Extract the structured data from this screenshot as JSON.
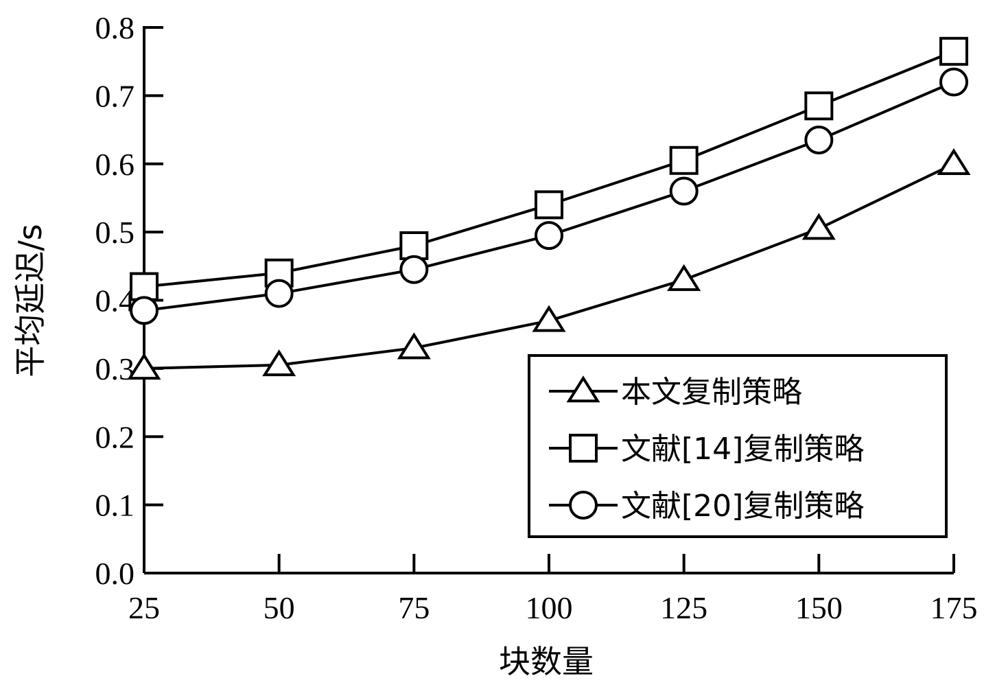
{
  "chart_data": {
    "type": "line",
    "title": "",
    "xlabel": "块数量",
    "ylabel": "平均延迟/s",
    "x": [
      25,
      50,
      75,
      100,
      125,
      150,
      175
    ],
    "xlim": [
      25,
      175
    ],
    "ylim": [
      0,
      0.8
    ],
    "xticks": [
      "25",
      "50",
      "75",
      "100",
      "125",
      "150",
      "175"
    ],
    "yticks": [
      "0.0",
      "0.1",
      "0.2",
      "0.3",
      "0.4",
      "0.5",
      "0.6",
      "0.7",
      "0.8"
    ],
    "grid": false,
    "legend_position": "bottom-right",
    "series": [
      {
        "name": "本文复制策略",
        "marker": "triangle",
        "values": [
          0.3,
          0.305,
          0.33,
          0.37,
          0.43,
          0.505,
          0.6
        ]
      },
      {
        "name": "文献[14]复制策略",
        "marker": "square",
        "values": [
          0.42,
          0.44,
          0.48,
          0.54,
          0.605,
          0.685,
          0.765
        ]
      },
      {
        "name": "文献[20]复制策略",
        "marker": "circle",
        "values": [
          0.385,
          0.41,
          0.445,
          0.495,
          0.56,
          0.635,
          0.72
        ]
      }
    ]
  }
}
